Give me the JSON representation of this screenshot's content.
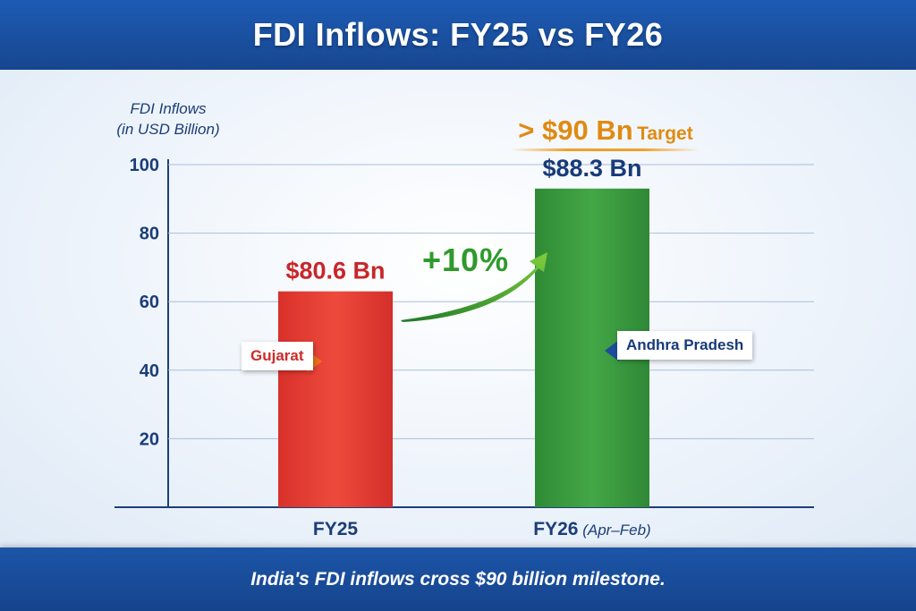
{
  "header": {
    "title": "FDI Inflows: FY25 vs FY26"
  },
  "footer": {
    "caption": "India's FDI inflows cross $90 billion milestone."
  },
  "colors": {
    "fy25_bar": "#e53e33",
    "fy26_bar": "#3a9a3e",
    "header_bg": "#1a4f9e",
    "target": "#e08a12",
    "growth": "#2f9a2c"
  },
  "annotations": {
    "target_prefix": "> $90 Bn",
    "target_suffix": "Target",
    "growth": "+10%",
    "state_fy25": "Gujarat",
    "state_fy26": "Andhra Pradesh"
  },
  "chart_data": {
    "type": "bar",
    "ylabel_line1": "FDI Inflows",
    "ylabel_line2": "(in USD Billion)",
    "categories": [
      "FY25",
      "FY26"
    ],
    "category_suffix": [
      "",
      "(Apr–Feb)"
    ],
    "values": [
      80.6,
      88.3
    ],
    "visual_values": [
      63,
      93
    ],
    "data_labels": [
      "$80.6 Bn",
      "$88.3 Bn"
    ],
    "yticks": [
      20,
      40,
      60,
      80,
      100
    ],
    "ylim": [
      0,
      103
    ],
    "grid": true
  }
}
